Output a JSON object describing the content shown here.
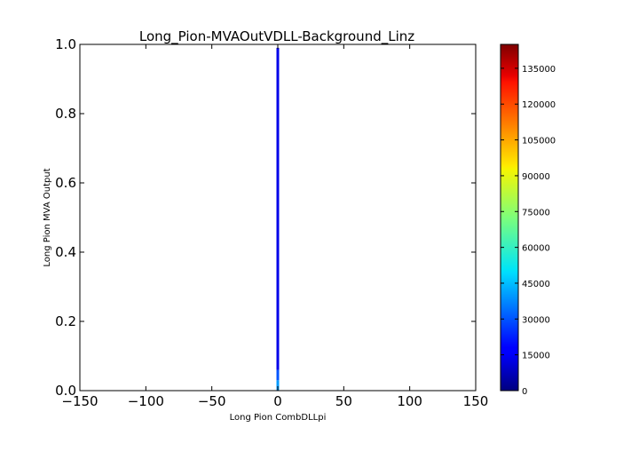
{
  "chart_data": {
    "type": "heatmap",
    "title": "Long_Pion-MVAOutVDLL-Background_Linz",
    "xlabel": "Long Pion CombDLLpi",
    "ylabel": "Long Pion MVA Output",
    "xlim": [
      -150,
      150
    ],
    "ylim": [
      0.0,
      1.0
    ],
    "x_ticks": [
      -150,
      -100,
      -50,
      0,
      50,
      100,
      150
    ],
    "x_tick_labels": [
      "−150",
      "−100",
      "−50",
      "0",
      "50",
      "100",
      "150"
    ],
    "y_ticks": [
      0.0,
      0.2,
      0.4,
      0.6,
      0.8,
      1.0
    ],
    "y_tick_labels": [
      "0.0",
      "0.2",
      "0.4",
      "0.6",
      "0.8",
      "1.0"
    ],
    "grid": false,
    "colormap": "jet",
    "colorbar": {
      "min": 0,
      "max": 145000,
      "ticks": [
        0,
        15000,
        30000,
        45000,
        60000,
        75000,
        90000,
        105000,
        120000,
        135000
      ],
      "tick_labels": [
        "0",
        "15000",
        "30000",
        "45000",
        "60000",
        "75000",
        "90000",
        "105000",
        "120000",
        "135000"
      ]
    },
    "cells": [
      {
        "x0": -1,
        "x1": 1,
        "y0": 0.0,
        "y1": 0.03,
        "value": 40000
      },
      {
        "x0": -1,
        "x1": 1,
        "y0": 0.03,
        "y1": 0.06,
        "value": 30000
      },
      {
        "x0": -1,
        "x1": 1,
        "y0": 0.06,
        "y1": 0.99,
        "value": 15000
      }
    ]
  }
}
